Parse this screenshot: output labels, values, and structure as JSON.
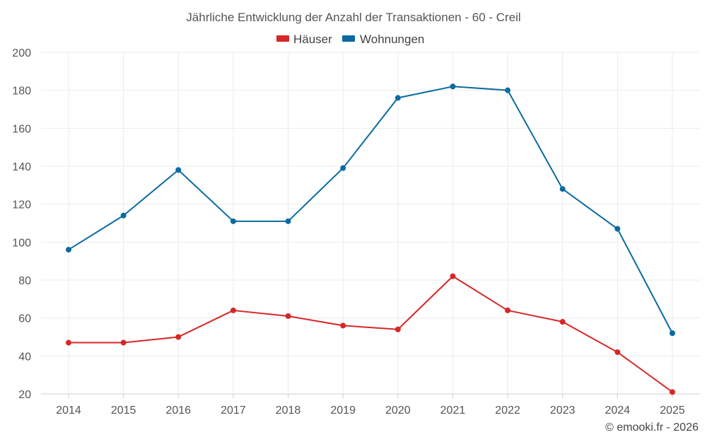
{
  "chart_data": {
    "type": "line",
    "title": "Jährliche Entwicklung der Anzahl der Transaktionen - 60 - Creil",
    "categories": [
      "2014",
      "2015",
      "2016",
      "2017",
      "2018",
      "2019",
      "2020",
      "2021",
      "2022",
      "2023",
      "2024",
      "2025"
    ],
    "series": [
      {
        "name": "Häuser",
        "color": "#d62728",
        "values": [
          47,
          47,
          50,
          64,
          61,
          56,
          54,
          82,
          64,
          58,
          42,
          21
        ]
      },
      {
        "name": "Wohnungen",
        "color": "#0a6aa1",
        "values": [
          96,
          114,
          138,
          111,
          111,
          139,
          176,
          182,
          180,
          128,
          107,
          52
        ]
      }
    ],
    "ylim": [
      20,
      200
    ],
    "yticks": [
      "20",
      "40",
      "60",
      "80",
      "100",
      "120",
      "140",
      "160",
      "180",
      "200"
    ],
    "xlabel": "",
    "ylabel": "",
    "grid": true,
    "legend": "top-center"
  },
  "credit": "© emooki.fr - 2026"
}
